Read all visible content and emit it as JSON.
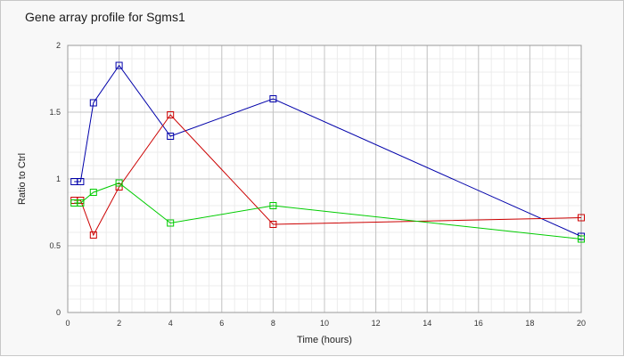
{
  "chart_data": {
    "type": "line",
    "title": "Gene array profile for Sgms1",
    "xlabel": "Time (hours)",
    "ylabel": "Ratio to Ctrl",
    "xlim": [
      0,
      20
    ],
    "ylim": [
      0,
      2
    ],
    "xticks": [
      0,
      2,
      4,
      6,
      8,
      10,
      12,
      14,
      16,
      18,
      20
    ],
    "yticks": [
      0,
      0.5,
      1,
      1.5,
      2
    ],
    "ytick_labels": [
      "0",
      "0.5",
      "1",
      "1.5",
      "2"
    ],
    "grid": true,
    "legend": "none",
    "series": [
      {
        "color": "#0000aa",
        "x": [
          0.25,
          0.5,
          1,
          2,
          4,
          8,
          20
        ],
        "y": [
          0.98,
          0.98,
          1.57,
          1.85,
          1.32,
          1.6,
          0.57
        ]
      },
      {
        "color": "#cc0000",
        "x": [
          0.25,
          0.5,
          1,
          2,
          4,
          8,
          20
        ],
        "y": [
          0.84,
          0.84,
          0.58,
          0.94,
          1.48,
          0.66,
          0.71
        ]
      },
      {
        "color": "#00cc00",
        "x": [
          0.25,
          0.5,
          1,
          2,
          4,
          8,
          20
        ],
        "y": [
          0.82,
          0.82,
          0.9,
          0.97,
          0.67,
          0.8,
          0.55
        ]
      }
    ]
  }
}
